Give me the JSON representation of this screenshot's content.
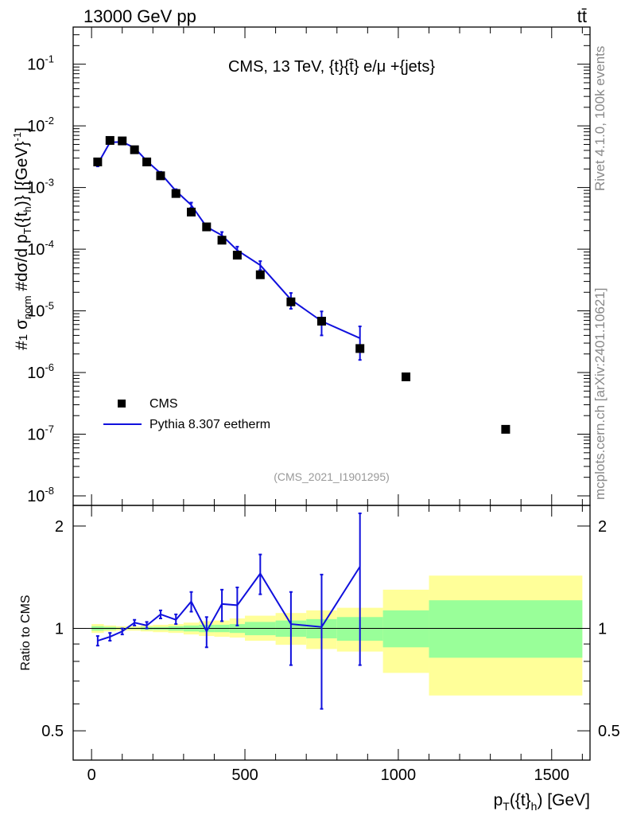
{
  "header": {
    "left": "13000 GeV pp",
    "right": "tt̄",
    "side_top": "Rivet 4.1.0,  100k events",
    "side_bottom": "mcplots.cern.ch [arXiv:2401.10621]"
  },
  "colors": {
    "mc": "#1010dd",
    "data": "#000000",
    "band_inner": "#99ff99",
    "band_outer": "#ffff99"
  },
  "chart_data": [
    {
      "type": "scatter",
      "title": "CMS, 13 TeV, {t}{t̄} e/μ +{jets}",
      "watermark": "(CMS_2021_I1901295)",
      "xlabel": "p_T({t}_h) [GeV]",
      "ylabel": "#1/σ_norm #dσ/d p_T({t}_h)} [{GeV}^-1]",
      "yscale": "log",
      "xlim": [
        -60,
        1625
      ],
      "ylim": [
        7e-09,
        0.4
      ],
      "yticks": [
        {
          "v": 1e-08,
          "label": "10^-8"
        },
        {
          "v": 1e-07,
          "label": "10^-7"
        },
        {
          "v": 1e-06,
          "label": "10^-6"
        },
        {
          "v": 1e-05,
          "label": "10^-5"
        },
        {
          "v": 0.0001,
          "label": "10^-4"
        },
        {
          "v": 0.001,
          "label": "10^-3"
        },
        {
          "v": 0.01,
          "label": "10^-2"
        },
        {
          "v": 0.1,
          "label": "10^-1"
        }
      ],
      "legend": [
        "CMS",
        "Pythia 8.307 eetherm"
      ],
      "legend_position": "lower-left",
      "series": [
        {
          "name": "CMS",
          "x": [
            20,
            60,
            100,
            140,
            180,
            225,
            275,
            325,
            375,
            425,
            475,
            550,
            650,
            750,
            875,
            1025,
            1350
          ],
          "y": [
            0.0026,
            0.0058,
            0.0057,
            0.0041,
            0.0026,
            0.00155,
            0.0008,
            0.0004,
            0.00023,
            0.00014,
            8e-05,
            3.85e-05,
            1.4e-05,
            6.8e-06,
            2.45e-06,
            8.5e-07,
            1.2e-07
          ]
        },
        {
          "name": "Pythia 8.307 eetherm",
          "x": [
            20,
            60,
            100,
            140,
            180,
            225,
            275,
            325,
            375,
            425,
            475,
            550,
            650,
            750,
            875
          ],
          "y": [
            0.0024,
            0.0054,
            0.0055,
            0.0044,
            0.0027,
            0.0017,
            0.00088,
            0.00052,
            0.00023,
            0.000168,
            9.6e-05,
            5.5e-05,
            1.52e-05,
            6.8e-06,
            3.6e-06
          ],
          "err_lo": [
            0.0022,
            0.0051,
            0.0052,
            0.0042,
            0.0026,
            0.0016,
            0.00082,
            0.00047,
            0.000205,
            0.000145,
            7.8e-05,
            4.6e-05,
            1.08e-05,
            4e-06,
            1.6e-06
          ],
          "err_hi": [
            0.0026,
            0.0057,
            0.0058,
            0.0046,
            0.0028,
            0.0018,
            0.00094,
            0.00057,
            0.000255,
            0.00019,
            0.00011,
            6.4e-05,
            1.95e-05,
            9.8e-06,
            5.6e-06
          ]
        }
      ]
    },
    {
      "type": "line",
      "ylabel": "Ratio to CMS",
      "xlabel": "p_T({t}_h) [GeV]",
      "xlim": [
        -60,
        1625
      ],
      "ylim": [
        0.41,
        2.3
      ],
      "xticks": [
        0,
        500,
        1000,
        1500
      ],
      "yticks": [
        0.5,
        1,
        2
      ],
      "reference_line": 1,
      "bands": {
        "edges": [
          0,
          40,
          80,
          120,
          160,
          200,
          250,
          300,
          350,
          400,
          450,
          500,
          600,
          700,
          800,
          950,
          1100,
          1600
        ],
        "inner_lo": [
          0.985,
          0.99,
          0.995,
          0.995,
          0.99,
          0.99,
          0.985,
          0.98,
          0.975,
          0.975,
          0.97,
          0.955,
          0.945,
          0.935,
          0.92,
          0.88,
          0.82
        ],
        "inner_hi": [
          1.015,
          1.01,
          1.005,
          1.005,
          1.01,
          1.01,
          1.015,
          1.02,
          1.025,
          1.025,
          1.03,
          1.045,
          1.055,
          1.065,
          1.08,
          1.13,
          1.21
        ],
        "outer_lo": [
          0.97,
          0.98,
          0.985,
          0.985,
          0.98,
          0.975,
          0.97,
          0.96,
          0.95,
          0.945,
          0.94,
          0.92,
          0.895,
          0.87,
          0.855,
          0.74,
          0.635
        ],
        "outer_hi": [
          1.03,
          1.02,
          1.015,
          1.015,
          1.02,
          1.025,
          1.03,
          1.04,
          1.05,
          1.055,
          1.07,
          1.09,
          1.11,
          1.13,
          1.15,
          1.3,
          1.43
        ]
      },
      "series": [
        {
          "name": "Pythia 8.307 eetherm",
          "x": [
            20,
            60,
            100,
            140,
            180,
            225,
            275,
            325,
            375,
            425,
            475,
            550,
            650,
            750,
            875
          ],
          "y": [
            0.92,
            0.945,
            0.98,
            1.04,
            1.02,
            1.1,
            1.06,
            1.2,
            0.98,
            1.18,
            1.17,
            1.45,
            1.03,
            1.01,
            1.52
          ],
          "err_lo": [
            0.89,
            0.92,
            0.96,
            1.02,
            1.0,
            1.07,
            1.03,
            1.12,
            0.88,
            1.05,
            1.02,
            1.26,
            0.78,
            0.58,
            0.78
          ],
          "err_hi": [
            0.95,
            0.97,
            1.0,
            1.06,
            1.045,
            1.13,
            1.1,
            1.28,
            1.08,
            1.3,
            1.32,
            1.65,
            1.28,
            1.44,
            2.18
          ]
        }
      ]
    }
  ]
}
